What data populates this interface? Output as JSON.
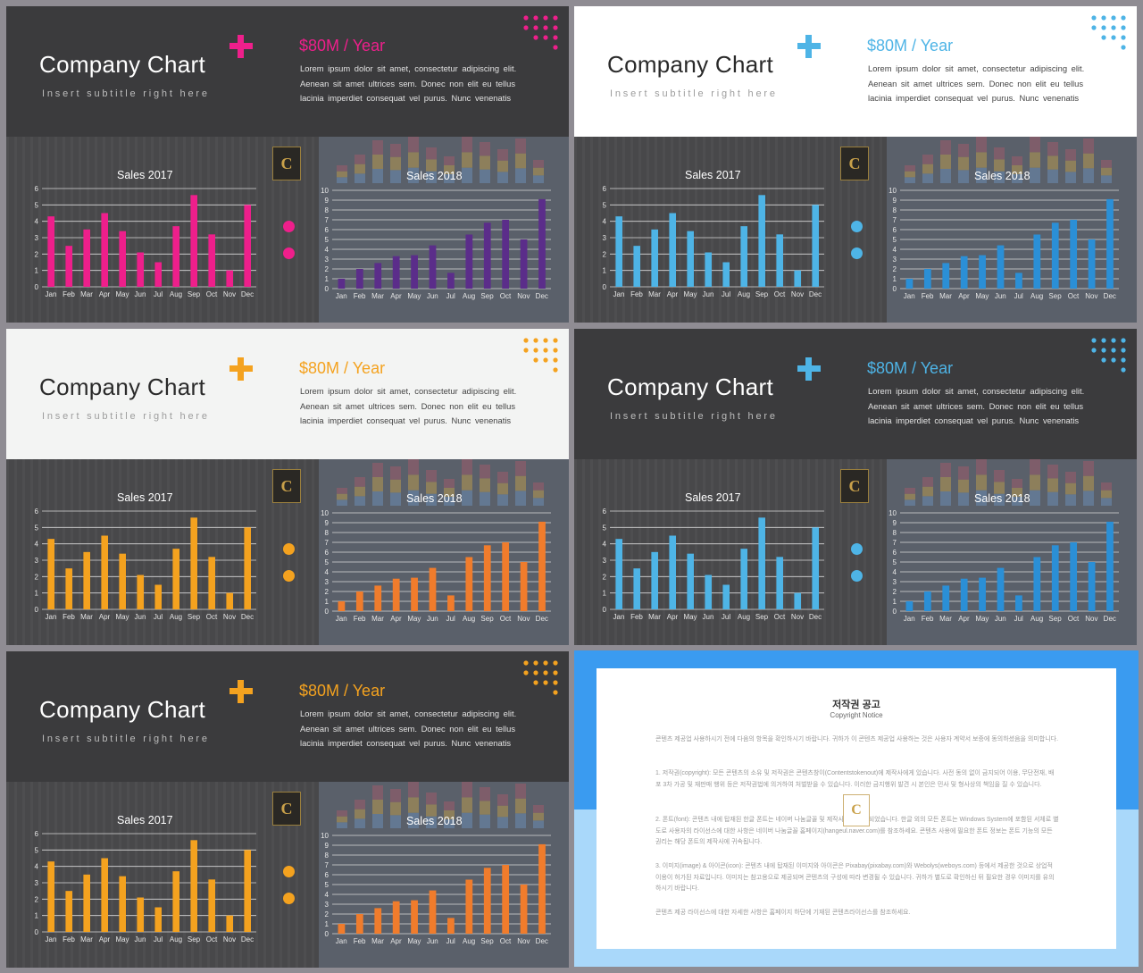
{
  "chart_title": "Company Chart",
  "chart_subtitle": "Insert subtitle right here",
  "headline": "$80M / Year",
  "description": "Lorem ipsum dolor sit amet, consectetur adipiscing elit. Aenean sit amet ultrices sem. Donec non elit eu tellus lacinia imperdiet consequat vel purus. Nunc venenatis",
  "logo_letter": "C",
  "slides": [
    {
      "theme": "dark",
      "accent": "#ee1f8b",
      "accent2": "#5b2d8a"
    },
    {
      "theme": "white",
      "accent": "#4eb4e6",
      "accent2": "#2b8fd6"
    },
    {
      "theme": "offwhite",
      "accent": "#f4a21f",
      "accent2": "#f07c2c"
    },
    {
      "theme": "dark",
      "accent": "#4eb4e6",
      "accent2": "#2b8fd6"
    },
    {
      "theme": "dark",
      "accent": "#f4a21f",
      "accent2": "#f07c2c"
    }
  ],
  "chart_data": [
    {
      "type": "bar",
      "title": "Sales 2017",
      "categories": [
        "Jan",
        "Feb",
        "Mar",
        "Apr",
        "May",
        "Jun",
        "Jul",
        "Aug",
        "Sep",
        "Oct",
        "Nov",
        "Dec"
      ],
      "values": [
        4.3,
        2.5,
        3.5,
        4.5,
        3.4,
        2.1,
        1.5,
        3.7,
        5.6,
        3.2,
        1.0,
        5.0
      ],
      "ylim": [
        0,
        6
      ],
      "yticks": [
        "0",
        "1",
        "2",
        "3",
        "4",
        "5",
        "6"
      ]
    },
    {
      "type": "bar",
      "title": "Sales 2018",
      "categories": [
        "Jan",
        "Feb",
        "Mar",
        "Apr",
        "May",
        "Jun",
        "Jul",
        "Aug",
        "Sep",
        "Oct",
        "Nov",
        "Dec"
      ],
      "values": [
        1.0,
        2.0,
        2.6,
        3.3,
        3.4,
        4.4,
        1.6,
        5.5,
        6.7,
        7.0,
        5.0,
        9.1
      ],
      "ylim": [
        0,
        10
      ],
      "yticks": [
        "0",
        "1",
        "2",
        "3",
        "4",
        "5",
        "6",
        "7",
        "8",
        "9",
        "10"
      ]
    }
  ],
  "notice": {
    "title": "저작권 공고",
    "subtitle": "Copyright Notice",
    "paragraphs": [
      "콘텐츠 제공업 사용하시기 전에 다음의 항목을 확인하시기 바랍니다. 귀하가 이 콘텐츠 제공업 사용하는 것은 사용자 계약서 보증에 동의하셨음을 의미합니다.",
      "1. 저작권(copyright): 모든 콘텐츠의 소유 및 저작권은 콘텐츠창이(Contentstokenout)에 제작사에게 있습니다. 사전 동의 없이 금지되어 이용, 무단전재, 배포 3차 가공 및 재판매 행위 등은 저작권법에 의거하여 처벌받을 수 있습니다. 이러한 금지행위 발견 시 본인은 민사 및 형사상의 책임을 질 수 있습니다.",
      "2. 폰트(font): 콘텐츠 내에 탑재된 한글 폰트는 네이버 나눔글꼴 및 제작사에서 제작되었습니다. 한글 외의 모든 폰트는 Windows System에 포함된 서체로 별도로 사용자의 라이선스에 대한 사항은 네이버 나눔글꼴 홈페이지(hangeul.naver.com)를 참조하세요. 콘텐츠 사용에 필요한 폰트 정보는 폰트 기능의 모든 권리는 해당 폰트의 제작사에 귀속됩니다.",
      "3. 이미지(image) & 아이콘(icon): 콘텐츠 내에 탑재된 이미지와 아이콘은 Pixabay(pixabay.com)와 Webolys(weboys.com) 등에서 제공한 것으로 상업적 이용이 허가된 자료입니다. 이미지는 참고용으로 제공되며 콘텐츠의 구성에 따라 변경될 수 있습니다. 귀하가 별도로 확인하신 뒤 필요한 경우 이미지를 유의하시기 바랍니다.",
      "콘텐츠 제공 라이선스에 대한 자세한 사항은 홈페이지 하단에 기재된 콘텐츠라이선스를 참조하세요."
    ]
  }
}
